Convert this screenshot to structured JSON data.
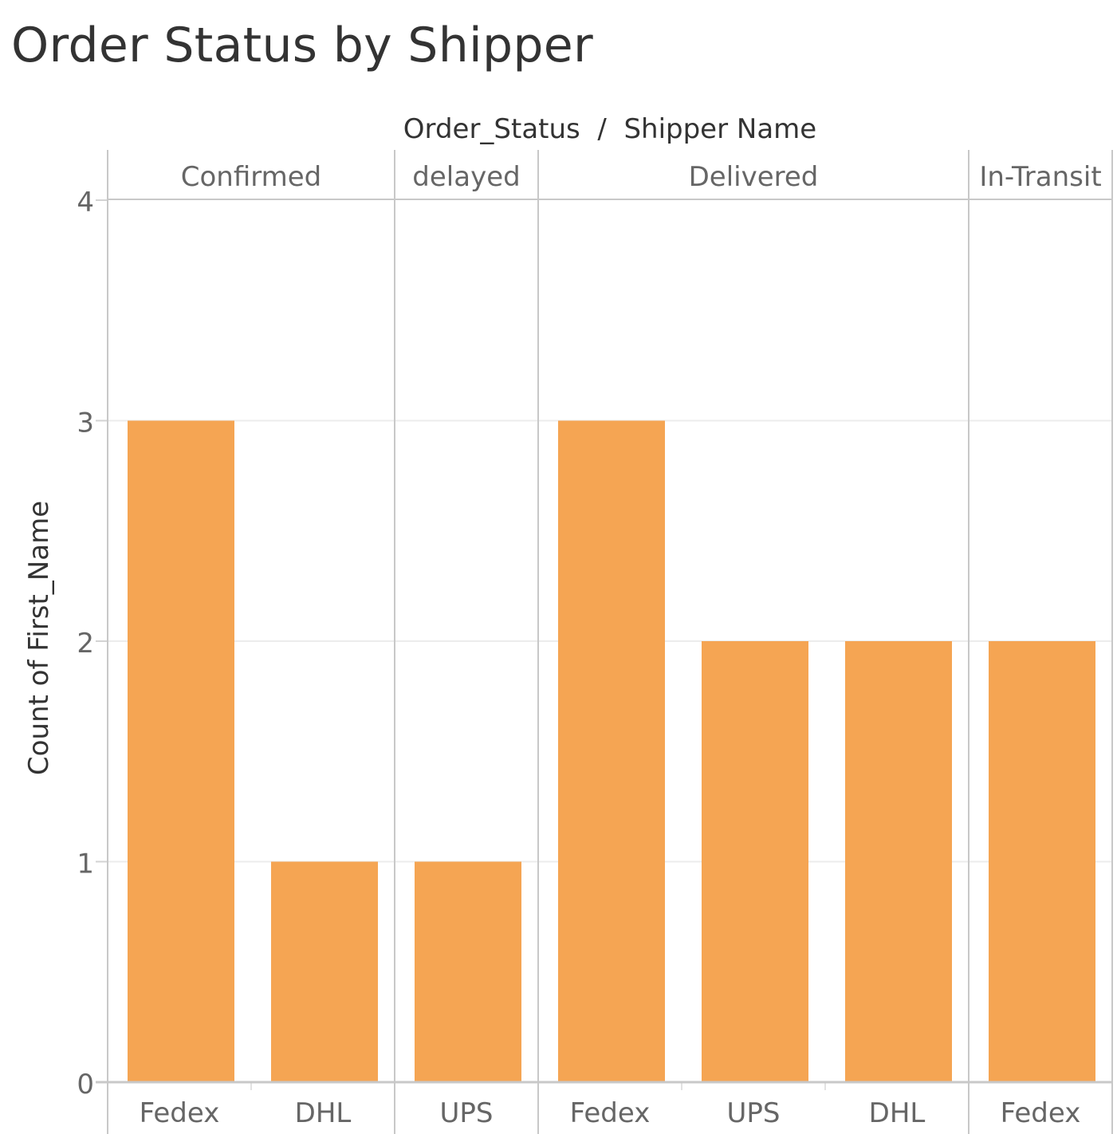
{
  "title": "Order Status by Shipper",
  "chart_data": {
    "type": "bar",
    "title": "Order Status by Shipper",
    "column_header": "Order_Status  /  Shipper Name",
    "ylabel": "Count of First_Name",
    "ylim": [
      0,
      4
    ],
    "yticks": [
      0,
      1,
      2,
      3,
      4
    ],
    "grid": true,
    "bar_color": "#f5a553",
    "groups": [
      {
        "name": "Confirmed",
        "shippers": [
          "Fedex",
          "DHL"
        ],
        "values": [
          3,
          1
        ]
      },
      {
        "name": "delayed",
        "shippers": [
          "UPS"
        ],
        "values": [
          1
        ]
      },
      {
        "name": "Delivered",
        "shippers": [
          "Fedex",
          "UPS",
          "DHL"
        ],
        "values": [
          3,
          2,
          2
        ]
      },
      {
        "name": "In-Transit",
        "shippers": [
          "Fedex"
        ],
        "values": [
          2
        ]
      }
    ]
  }
}
